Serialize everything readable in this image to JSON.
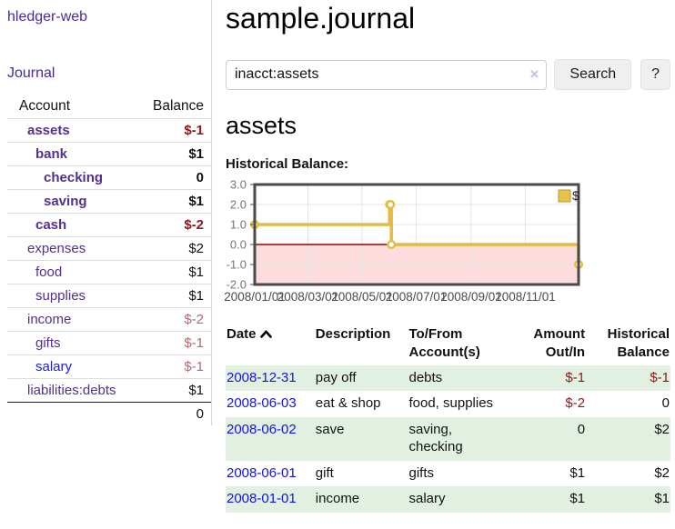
{
  "colors": {
    "brand_purple": "#4a2a9a",
    "account_link_purple": "#542e91",
    "link_blue": "#1414e0",
    "negative_strong": "#8b1a1a",
    "negative_muted": "#b26a70",
    "row_stripe_green": "#e2f0e2",
    "chart_line_gold": "#e3bc42",
    "chart_negative_fill": "#fcdcdc"
  },
  "app": {
    "title": "hledger-web"
  },
  "sidebar": {
    "journal_label": "Journal",
    "accounts": {
      "header_account": "Account",
      "header_balance": "Balance",
      "rows": [
        {
          "name": "assets",
          "balance": "$-1",
          "depth": 1,
          "bold": true
        },
        {
          "name": "bank",
          "balance": "$1",
          "depth": 2,
          "bold": true
        },
        {
          "name": "checking",
          "balance": "0",
          "depth": 3,
          "bold": true
        },
        {
          "name": "saving",
          "balance": "$1",
          "depth": 3,
          "bold": true
        },
        {
          "name": "cash",
          "balance": "$-2",
          "depth": 2,
          "bold": true
        },
        {
          "name": "expenses",
          "balance": "$2",
          "depth": 1,
          "bold": false
        },
        {
          "name": "food",
          "balance": "$1",
          "depth": 2,
          "bold": false
        },
        {
          "name": "supplies",
          "balance": "$1",
          "depth": 2,
          "bold": false
        },
        {
          "name": "income",
          "balance": "$-2",
          "depth": 1,
          "bold": false
        },
        {
          "name": "gifts",
          "balance": "$-1",
          "depth": 2,
          "bold": false
        },
        {
          "name": "salary",
          "balance": "$-1",
          "depth": 2,
          "bold": false,
          "unvisited": true
        },
        {
          "name": "liabilities:debts",
          "balance": "$1",
          "depth": 1,
          "bold": false
        }
      ],
      "total": "0"
    }
  },
  "main": {
    "title": "sample.journal",
    "search": {
      "value": "inacct:assets",
      "clear_icon": "×",
      "button_label": "Search",
      "help_label": "?"
    },
    "account_heading": "assets"
  },
  "chart_data": {
    "type": "line",
    "step": true,
    "title": "Historical Balance:",
    "series": [
      {
        "name": "$",
        "points": [
          [
            "2008-01-01",
            1
          ],
          [
            "2008-06-01",
            2
          ],
          [
            "2008-06-02",
            2
          ],
          [
            "2008-06-03",
            0
          ],
          [
            "2008-12-31",
            -1
          ]
        ]
      }
    ],
    "x_range": [
      "2008-01-01",
      "2008-12-31"
    ],
    "ylim": [
      -2,
      3
    ],
    "ytick_labels": [
      "3.0",
      "2.0",
      "1.0",
      "0.0",
      "-1.0",
      "-2.0"
    ],
    "xtick_labels": [
      "2008/01/01",
      "2008/03/01",
      "2008/05/01",
      "2008/07/01",
      "2008/09/01",
      "2008/11/01"
    ],
    "xtick_dates": [
      "2008-01-01",
      "2008-03-01",
      "2008-05-01",
      "2008-07-01",
      "2008-09-01",
      "2008-11-01"
    ],
    "legend": {
      "label": "$",
      "position": "top-right"
    },
    "grid": true,
    "line_color": "#e3bc42",
    "marker_fill": "#ffffff",
    "negative_region_fill": "#fcdcdc",
    "zero_line_color": "#990000"
  },
  "register": {
    "headers": [
      "Date",
      "Description",
      "To/From Account(s)",
      "Amount Out/In",
      "Historical Balance"
    ],
    "sort": {
      "column": "Date",
      "direction": "asc"
    },
    "rows": [
      {
        "date": "2008-12-31",
        "description": "pay off",
        "accounts": "debts",
        "amount": "$-1",
        "balance": "$-1"
      },
      {
        "date": "2008-06-03",
        "description": "eat & shop",
        "accounts": "food, supplies",
        "amount": "$-2",
        "balance": "0"
      },
      {
        "date": "2008-06-02",
        "description": "save",
        "accounts": "saving, checking",
        "amount": "0",
        "balance": "$2"
      },
      {
        "date": "2008-06-01",
        "description": "gift",
        "accounts": "gifts",
        "amount": "$1",
        "balance": "$2"
      },
      {
        "date": "2008-01-01",
        "description": "income",
        "accounts": "salary",
        "amount": "$1",
        "balance": "$1"
      }
    ]
  }
}
